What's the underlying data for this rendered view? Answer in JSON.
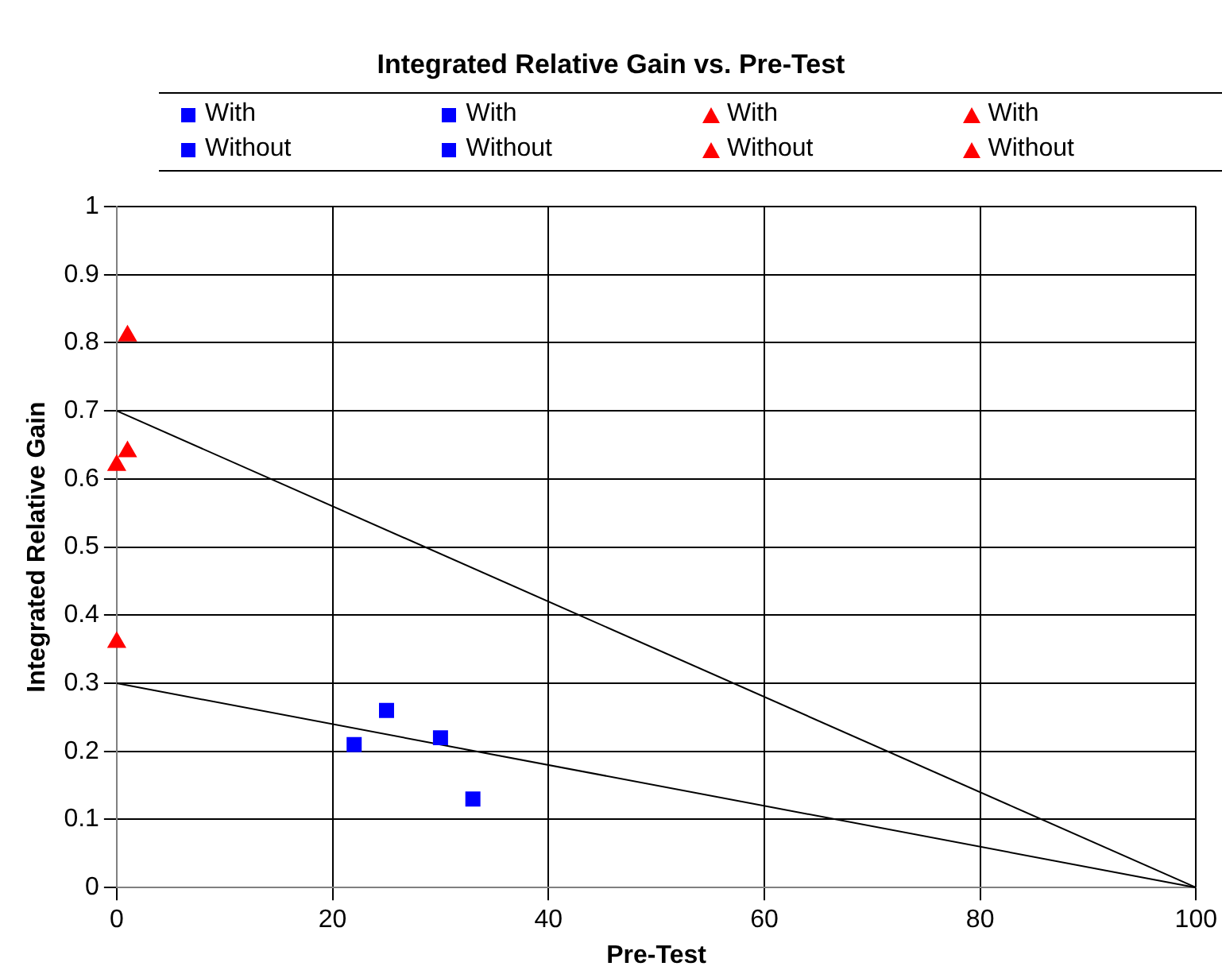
{
  "chart_data": {
    "type": "scatter",
    "title": "Integrated Relative Gain vs. Pre-Test",
    "xlabel": "Pre-Test",
    "ylabel": "Integrated Relative Gain",
    "xlim": [
      0,
      100
    ],
    "xticks": [
      0,
      20,
      40,
      60,
      80,
      100
    ],
    "ylim": [
      0,
      1
    ],
    "yticks": [
      0,
      0.1,
      0.2,
      0.3,
      0.4,
      0.5,
      0.6,
      0.7,
      0.8,
      0.9,
      1
    ],
    "grid": true,
    "legend": "top",
    "series": [
      {
        "name": "With",
        "type": "scatter",
        "marker": "square",
        "color": "#0000ff",
        "x": [
          25
        ],
        "values": [
          0.26
        ]
      },
      {
        "name": "With",
        "type": "scatter",
        "marker": "square",
        "color": "#0000ff",
        "x": [
          30
        ],
        "values": [
          0.22
        ]
      },
      {
        "name": "With",
        "type": "scatter",
        "marker": "triangle",
        "color": "#ff0000",
        "x": [
          1
        ],
        "values": [
          0.81
        ]
      },
      {
        "name": "With",
        "type": "scatter",
        "marker": "triangle",
        "color": "#ff0000",
        "x": [
          0
        ],
        "values": [
          0.62
        ]
      },
      {
        "name": "Without",
        "type": "scatter",
        "marker": "square",
        "color": "#0000ff",
        "x": [
          22
        ],
        "values": [
          0.21
        ]
      },
      {
        "name": "Without",
        "type": "scatter",
        "marker": "square",
        "color": "#0000ff",
        "x": [
          33
        ],
        "values": [
          0.13
        ]
      },
      {
        "name": "Without",
        "type": "scatter",
        "marker": "triangle",
        "color": "#ff0000",
        "x": [
          1
        ],
        "values": [
          0.64
        ]
      },
      {
        "name": "Without",
        "type": "scatter",
        "marker": "triangle",
        "color": "#ff0000",
        "x": [
          0
        ],
        "values": [
          0.36
        ]
      },
      {
        "type": "line",
        "marker": "none",
        "color": "#000000",
        "x": [
          0,
          100
        ],
        "values": [
          0.7,
          0
        ]
      },
      {
        "type": "line",
        "marker": "none",
        "color": "#000000",
        "x": [
          0,
          100
        ],
        "values": [
          0.3,
          0
        ]
      }
    ]
  }
}
